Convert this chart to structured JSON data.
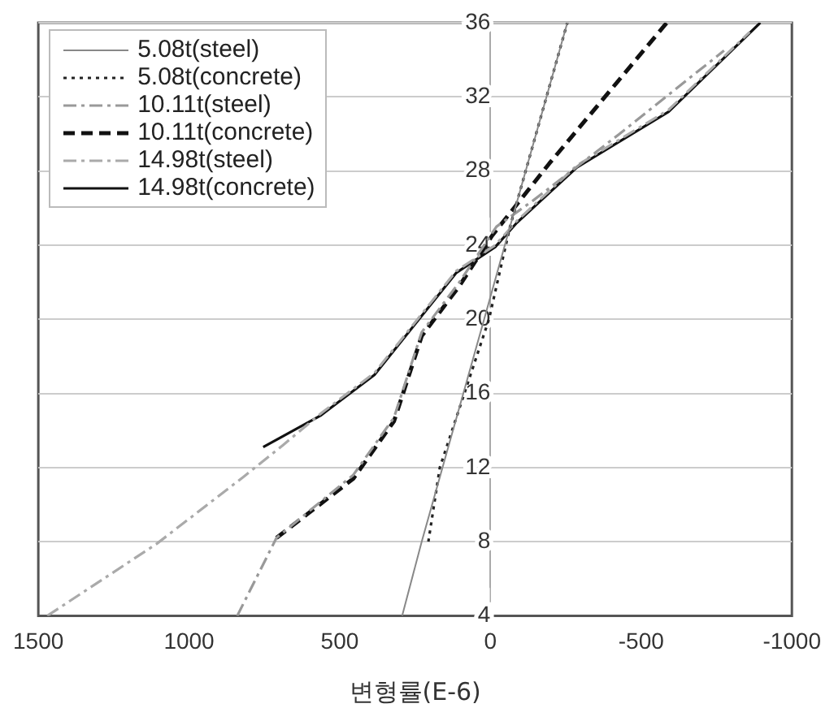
{
  "chart_data": {
    "type": "line",
    "xlabel": "변형률(E-6)",
    "xlim": [
      1500,
      -1000
    ],
    "xticks": [
      1500,
      1000,
      500,
      0,
      -500,
      -1000
    ],
    "ylim": [
      4,
      36
    ],
    "yticks": [
      4,
      8,
      12,
      16,
      20,
      24,
      28,
      32,
      36
    ],
    "grid": "y",
    "legend": "top left",
    "marker": "none",
    "series": [
      {
        "name": "5.08t(steel)",
        "color": "#888888",
        "line_style": "solid",
        "x": [
          293,
          228,
          21,
          -65,
          -255
        ],
        "values": [
          4,
          8,
          20,
          25,
          36
        ]
      },
      {
        "name": "5.08t(concrete)",
        "color": "#222222",
        "line_style": "dotted",
        "x": [
          206,
          168,
          5,
          -65,
          -255
        ],
        "values": [
          8,
          12,
          20,
          25,
          36
        ]
      },
      {
        "name": "10.11t(steel)",
        "color": "#999999",
        "line_style": "dashdot",
        "x": [
          840,
          710,
          455,
          320,
          228,
          103,
          -20,
          -141,
          -428,
          -775
        ],
        "values": [
          4,
          8.2,
          11.6,
          14.7,
          19.3,
          22,
          25,
          26.4,
          30,
          34.5
        ]
      },
      {
        "name": "10.11t(concrete)",
        "color": "#111111",
        "line_style": "dashed",
        "x": [
          710,
          455,
          320,
          228,
          103,
          -5,
          -195,
          -585
        ],
        "values": [
          8.2,
          11.4,
          14.5,
          19.1,
          21.8,
          24.5,
          28.4,
          36
        ]
      },
      {
        "name": "14.98t(steel)",
        "color": "#aaaaaa",
        "line_style": "dashdot",
        "x": [
          1470,
          1106,
          819,
          689,
          564,
          385,
          114,
          -16,
          -87,
          -287,
          -591,
          -860
        ],
        "values": [
          4,
          7.9,
          11.5,
          13.2,
          14.9,
          17.1,
          22.6,
          24,
          25.3,
          28.3,
          31.3,
          35.5
        ]
      },
      {
        "name": "14.98t(concrete)",
        "color": "#111111",
        "line_style": "solid",
        "x": [
          754,
          564,
          385,
          114,
          -16,
          -87,
          -287,
          -591,
          -895
        ],
        "values": [
          13.1,
          14.8,
          17,
          22.5,
          23.9,
          25.2,
          28.2,
          31.2,
          36
        ]
      }
    ]
  }
}
